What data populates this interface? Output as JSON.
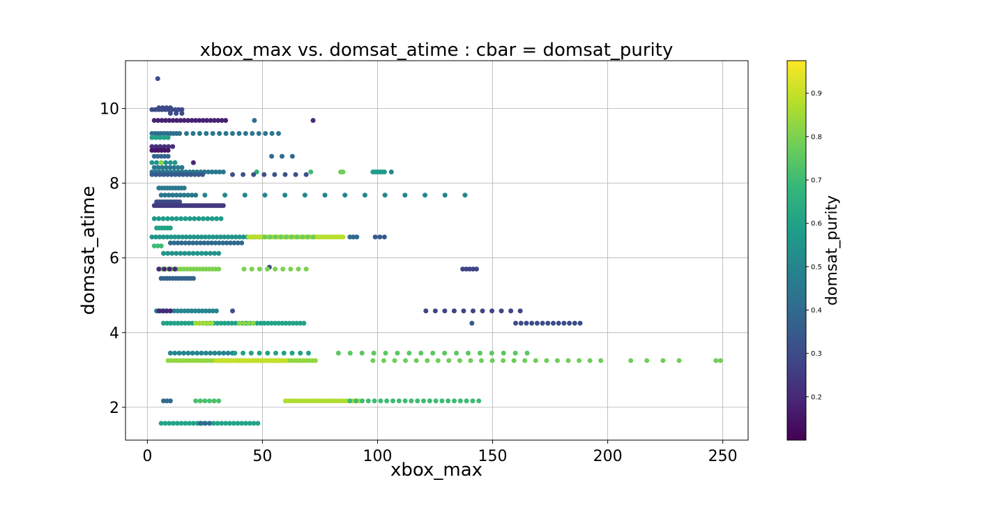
{
  "chart_data": {
    "type": "scatter",
    "title": "xbox_max vs. domsat_atime : cbar = domsat_purity",
    "xlabel": "xbox_max",
    "ylabel": "domsat_atime",
    "xlim": [
      -9.5,
      261
    ],
    "ylim": [
      1.12,
      11.28
    ],
    "xticks": [
      0,
      50,
      100,
      150,
      200,
      250
    ],
    "yticks": [
      2,
      4,
      6,
      8,
      10
    ],
    "grid": true,
    "colorbar": {
      "label": "domsat_purity",
      "range": [
        0.1,
        0.975
      ],
      "ticks": [
        0.2,
        0.3,
        0.4,
        0.5,
        0.6,
        0.7,
        0.8,
        0.9
      ],
      "colormap_stops": [
        "#440154",
        "#482878",
        "#3e4a89",
        "#31688e",
        "#26828e",
        "#1f9e89",
        "#35b779",
        "#6ece58",
        "#b5de2b",
        "#fde725"
      ]
    },
    "rows": [
      {
        "y": 10.8,
        "segments": [
          [
            4.5,
            4.5,
            1,
            0.3
          ]
        ]
      },
      {
        "y": 10.02,
        "segments": [
          [
            5,
            10,
            4,
            0.3
          ]
        ]
      },
      {
        "y": 9.97,
        "segments": [
          [
            2,
            15,
            10,
            0.3
          ]
        ]
      },
      {
        "y": 9.87,
        "segments": [
          [
            10,
            15,
            3,
            0.3
          ]
        ]
      },
      {
        "y": 9.68,
        "segments": [
          [
            3,
            34,
            20,
            0.18
          ],
          [
            46.5,
            46.5,
            1,
            0.42
          ],
          [
            72,
            72,
            1,
            0.2
          ]
        ]
      },
      {
        "y": 9.33,
        "segments": [
          [
            2,
            14,
            10,
            0.42
          ],
          [
            17,
            57,
            15,
            0.45
          ]
        ]
      },
      {
        "y": 9.22,
        "segments": [
          [
            2,
            9,
            5,
            0.6
          ]
        ]
      },
      {
        "y": 8.98,
        "segments": [
          [
            2,
            11,
            6,
            0.22
          ]
        ]
      },
      {
        "y": 8.88,
        "segments": [
          [
            2,
            9,
            6,
            0.15
          ]
        ]
      },
      {
        "y": 8.72,
        "segments": [
          [
            3,
            9,
            5,
            0.38
          ],
          [
            54,
            63,
            3,
            0.4
          ]
        ]
      },
      {
        "y": 8.55,
        "segments": [
          [
            2,
            12,
            6,
            0.55
          ],
          [
            6,
            6,
            1,
            0.82
          ],
          [
            20,
            20,
            1,
            0.2
          ]
        ]
      },
      {
        "y": 8.42,
        "segments": [
          [
            3,
            15,
            8,
            0.45
          ]
        ]
      },
      {
        "y": 8.3,
        "segments": [
          [
            2,
            33,
            20,
            0.45
          ],
          [
            47.5,
            47.5,
            1,
            0.65
          ],
          [
            71,
            71,
            1,
            0.7
          ],
          [
            84,
            85,
            2,
            0.78
          ],
          [
            98,
            103,
            6,
            0.58
          ],
          [
            106,
            106,
            1,
            0.5
          ]
        ]
      },
      {
        "y": 8.23,
        "segments": [
          [
            2,
            24,
            14,
            0.35
          ],
          [
            37,
            69,
            8,
            0.32
          ]
        ]
      },
      {
        "y": 7.87,
        "segments": [
          [
            5,
            16,
            10,
            0.45
          ]
        ]
      },
      {
        "y": 7.68,
        "segments": [
          [
            6,
            21,
            10,
            0.45
          ],
          [
            25,
            138,
            14,
            0.5
          ]
        ]
      },
      {
        "y": 7.5,
        "segments": [
          [
            4,
            14,
            10,
            0.3
          ]
        ]
      },
      {
        "y": 7.4,
        "segments": [
          [
            3,
            33,
            30,
            0.25
          ]
        ]
      },
      {
        "y": 7.05,
        "segments": [
          [
            3,
            32,
            16,
            0.58
          ]
        ]
      },
      {
        "y": 6.8,
        "segments": [
          [
            4,
            10,
            6,
            0.6
          ]
        ]
      },
      {
        "y": 6.56,
        "segments": [
          [
            2,
            50,
            30,
            0.55
          ],
          [
            44,
            85,
            40,
            0.88
          ],
          [
            51,
            72,
            10,
            0.78
          ],
          [
            88,
            91,
            3,
            0.4
          ],
          [
            99,
            103,
            3,
            0.35
          ]
        ]
      },
      {
        "y": 6.4,
        "segments": [
          [
            10,
            41,
            20,
            0.4
          ]
        ]
      },
      {
        "y": 6.32,
        "segments": [
          [
            3,
            6,
            3,
            0.7
          ]
        ]
      },
      {
        "y": 6.12,
        "segments": [
          [
            7,
            31,
            14,
            0.55
          ]
        ]
      },
      {
        "y": 5.75,
        "segments": [
          [
            53,
            53,
            1,
            0.3
          ]
        ]
      },
      {
        "y": 5.7,
        "segments": [
          [
            5,
            31,
            20,
            0.8
          ],
          [
            5,
            12,
            4,
            0.2
          ],
          [
            42,
            69,
            9,
            0.8
          ],
          [
            137,
            143,
            5,
            0.28
          ]
        ]
      },
      {
        "y": 5.45,
        "segments": [
          [
            6,
            20,
            12,
            0.38
          ]
        ]
      },
      {
        "y": 4.58,
        "segments": [
          [
            4,
            30,
            18,
            0.5
          ],
          [
            5,
            10,
            4,
            0.2
          ],
          [
            37,
            37,
            1,
            0.3
          ],
          [
            121,
            162,
            11,
            0.28
          ]
        ]
      },
      {
        "y": 4.25,
        "segments": [
          [
            7,
            68,
            40,
            0.6
          ],
          [
            21,
            28,
            5,
            0.85
          ],
          [
            40,
            46,
            4,
            0.82
          ],
          [
            141,
            141,
            1,
            0.35
          ],
          [
            160,
            188,
            13,
            0.3
          ]
        ]
      },
      {
        "y": 3.45,
        "segments": [
          [
            10,
            37,
            15,
            0.5
          ],
          [
            38,
            70,
            10,
            0.6
          ],
          [
            83,
            165,
            17,
            0.75
          ]
        ]
      },
      {
        "y": 3.25,
        "segments": [
          [
            9,
            73,
            50,
            0.83
          ],
          [
            30,
            60,
            20,
            0.9
          ],
          [
            98,
            197,
            22,
            0.78
          ],
          [
            210,
            231,
            4,
            0.78
          ],
          [
            247,
            249,
            2,
            0.78
          ]
        ]
      },
      {
        "y": 2.17,
        "segments": [
          [
            7,
            10,
            3,
            0.4
          ],
          [
            21,
            31,
            6,
            0.72
          ],
          [
            60,
            92,
            25,
            0.87
          ],
          [
            88,
            144,
            22,
            0.7
          ]
        ]
      },
      {
        "y": 1.57,
        "segments": [
          [
            6,
            48,
            25,
            0.6
          ],
          [
            23,
            27,
            3,
            0.4
          ]
        ]
      }
    ]
  }
}
